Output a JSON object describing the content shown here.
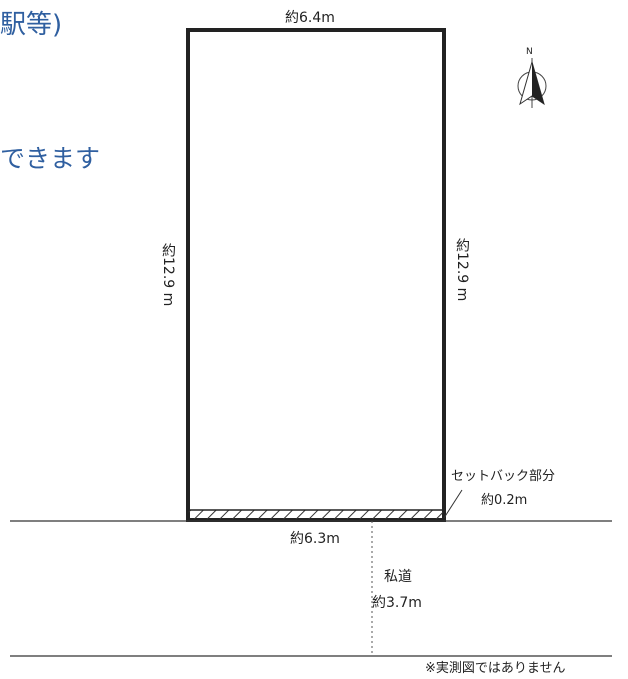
{
  "heading_line1": "駅等)",
  "heading_line2": "できます",
  "north_label": "N",
  "top_width": "約6.4m",
  "left_depth": "約12.9 m",
  "right_depth": "約12.9 m",
  "bottom_width": "約6.3m",
  "setback_label": "セットバック部分",
  "setback_width": "約0.2m",
  "road_label": "私道",
  "road_width": "約3.7m",
  "disclaimer": "※実測図ではありません",
  "colors": {
    "heading": "#2f5fa0",
    "line": "#222222"
  },
  "icons": [
    "north-arrow-icon"
  ]
}
